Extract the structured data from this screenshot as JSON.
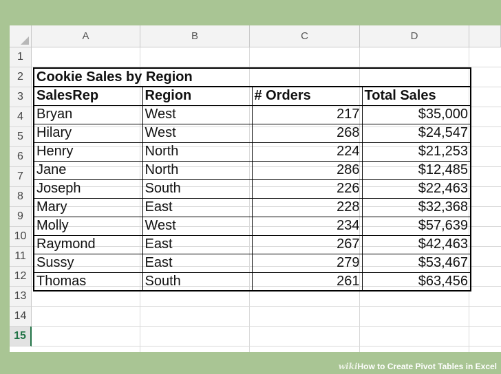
{
  "columns": [
    "A",
    "B",
    "C",
    "D"
  ],
  "rows": [
    "1",
    "2",
    "3",
    "4",
    "5",
    "6",
    "7",
    "8",
    "9",
    "10",
    "11",
    "12",
    "13",
    "14",
    "15"
  ],
  "active_row": "15",
  "table": {
    "title": "Cookie Sales by Region",
    "headers": [
      "SalesRep",
      "Region",
      "# Orders",
      "Total Sales"
    ],
    "records": [
      [
        "Bryan",
        "West",
        "217",
        "$35,000"
      ],
      [
        "Hilary",
        "West",
        "268",
        "$24,547"
      ],
      [
        "Henry",
        "North",
        "224",
        "$21,253"
      ],
      [
        "Jane",
        "North",
        "286",
        "$12,485"
      ],
      [
        "Joseph",
        "South",
        "226",
        "$22,463"
      ],
      [
        "Mary",
        "East",
        "228",
        "$32,368"
      ],
      [
        "Molly",
        "West",
        "234",
        "$57,639"
      ],
      [
        "Raymond",
        "East",
        "267",
        "$42,463"
      ],
      [
        "Sussy",
        "East",
        "279",
        "$53,467"
      ],
      [
        "Thomas",
        "South",
        "261",
        "$63,456"
      ]
    ]
  },
  "watermark": {
    "brand": "wiki",
    "text": "How to Create Pivot Tables in Excel"
  },
  "colors": {
    "background": "#a9c594",
    "active_row_accent": "#217346"
  }
}
